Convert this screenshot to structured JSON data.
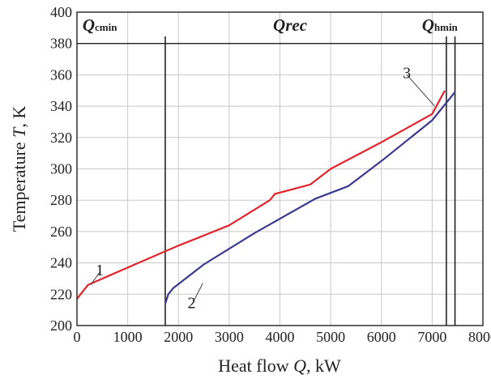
{
  "chart_data": {
    "type": "line",
    "xlabel": "Heat flow Q, kW",
    "ylabel": "Temperature T, K",
    "xlim": [
      0,
      8000
    ],
    "ylim": [
      200,
      400
    ],
    "x_ticks": [
      0,
      1000,
      2000,
      3000,
      4000,
      5000,
      6000,
      7000,
      8000
    ],
    "y_ticks": [
      200,
      220,
      240,
      260,
      280,
      300,
      320,
      340,
      360,
      380,
      400
    ],
    "grid": true,
    "series": [
      {
        "name": "1",
        "color": "#e0262c",
        "x": [
          0,
          120,
          220,
          1000,
          2000,
          3000,
          3800,
          3900,
          4600,
          5000,
          6000,
          7000,
          7250
        ],
        "y": [
          217,
          222,
          226,
          237,
          251,
          264,
          280,
          284,
          290,
          300,
          317,
          335,
          350
        ]
      },
      {
        "name": "2",
        "color": "#3a3a8e",
        "x": [
          1740,
          1800,
          1900,
          2500,
          3500,
          4700,
          5350,
          6000,
          7000,
          7450
        ],
        "y": [
          214,
          220,
          224,
          239,
          259,
          281,
          289,
          305,
          331,
          349
        ]
      }
    ],
    "curve_labels": [
      {
        "text": "1",
        "x": 450,
        "y": 232,
        "lx": 270,
        "ly": 226
      },
      {
        "text": "2",
        "x": 2260,
        "y": 211,
        "lx": 2480,
        "ly": 227
      },
      {
        "text": "3",
        "x": 6500,
        "y": 358,
        "lx": 7050,
        "ly": 340
      }
    ],
    "vertical_lines": [
      1740,
      7280,
      7450
    ],
    "region_line_y": 380,
    "region_labels": [
      {
        "main": "Q",
        "sub": "cmin",
        "x": 450
      },
      {
        "main": "Qrec",
        "sub": "",
        "x": 4200
      },
      {
        "main": "Q",
        "sub": "hmin",
        "x": 7150
      }
    ]
  }
}
